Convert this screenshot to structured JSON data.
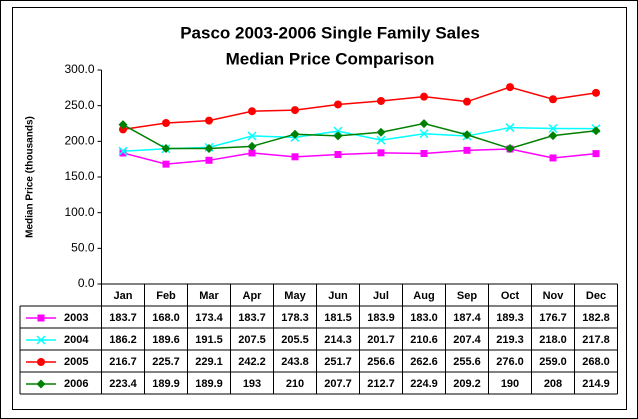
{
  "chart_data": {
    "type": "line",
    "title": [
      "Pasco 2003-2006 Single Family Sales",
      "Median Price Comparison"
    ],
    "y_label": "Median Price (thousands)",
    "categories": [
      "Jan",
      "Feb",
      "Mar",
      "Apr",
      "May",
      "Jun",
      "Jul",
      "Aug",
      "Sep",
      "Oct",
      "Nov",
      "Dec"
    ],
    "series": [
      {
        "name": "2003",
        "color": "#ff00ff",
        "marker": "square",
        "values": [
          183.7,
          168.0,
          173.4,
          183.7,
          178.3,
          181.5,
          183.9,
          183.0,
          187.4,
          189.3,
          176.7,
          182.8
        ],
        "value_labels": [
          "183.7",
          "168.0",
          "173.4",
          "183.7",
          "178.3",
          "181.5",
          "183.9",
          "183.0",
          "187.4",
          "189.3",
          "176.7",
          "182.8"
        ]
      },
      {
        "name": "2004",
        "color": "#00ffff",
        "marker": "x",
        "values": [
          186.2,
          189.6,
          191.5,
          207.5,
          205.5,
          214.3,
          201.7,
          210.6,
          207.4,
          219.3,
          218.0,
          217.8
        ],
        "value_labels": [
          "186.2",
          "189.6",
          "191.5",
          "207.5",
          "205.5",
          "214.3",
          "201.7",
          "210.6",
          "207.4",
          "219.3",
          "218.0",
          "217.8"
        ]
      },
      {
        "name": "2005",
        "color": "#ff0000",
        "marker": "circle",
        "values": [
          216.7,
          225.7,
          229.1,
          242.2,
          243.8,
          251.7,
          256.6,
          262.6,
          255.6,
          276.0,
          259.0,
          268.0
        ],
        "value_labels": [
          "216.7",
          "225.7",
          "229.1",
          "242.2",
          "243.8",
          "251.7",
          "256.6",
          "262.6",
          "255.6",
          "276.0",
          "259.0",
          "268.0"
        ]
      },
      {
        "name": "2006",
        "color": "#008000",
        "marker": "diamond",
        "values": [
          223.4,
          189.9,
          189.9,
          193,
          210,
          207.7,
          212.7,
          224.9,
          209.2,
          190,
          208,
          214.9
        ],
        "value_labels": [
          "223.4",
          "189.9",
          "189.9",
          "193",
          "210",
          "207.7",
          "212.7",
          "224.9",
          "209.2",
          "190",
          "208",
          "214.9"
        ]
      }
    ],
    "ylim": [
      0,
      300
    ],
    "yticks": [
      {
        "value": 0,
        "label": "0.0"
      },
      {
        "value": 50,
        "label": "50.0"
      },
      {
        "value": 100,
        "label": "100.0"
      },
      {
        "value": 150,
        "label": "150.0"
      },
      {
        "value": 200,
        "label": "200.0"
      },
      {
        "value": 250,
        "label": "250.0"
      },
      {
        "value": 300,
        "label": "300.0"
      }
    ],
    "grid": false
  }
}
